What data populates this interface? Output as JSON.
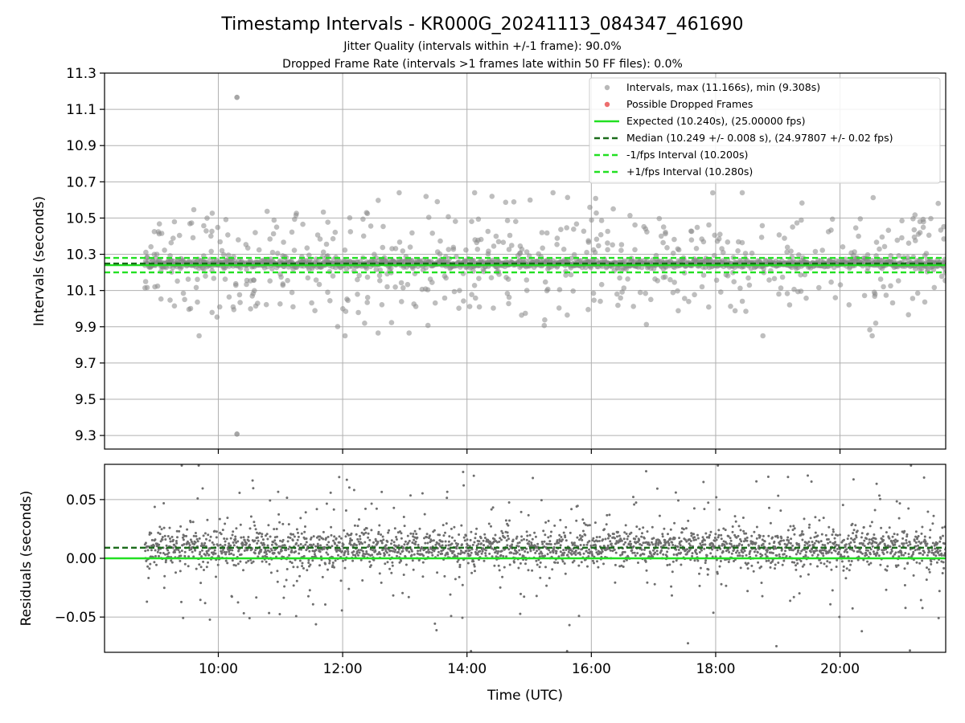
{
  "title": "Timestamp Intervals - KR000G_20241113_084347_461690",
  "subtitle_lines": [
    "Jitter Quality (intervals within +/-1 frame): 90.0%",
    "Dropped Frame Rate (intervals >1 frames late within 50 FF files): 0.0%"
  ],
  "colors": {
    "points": "#888888",
    "dropped": "#e84a4a",
    "expected": "#22e022",
    "median": "#1a6b1a",
    "interval_lines": "#22e022",
    "residual_points": "#6e6e6e",
    "grid": "#b0b0b0"
  },
  "chart_data": [
    {
      "type": "scatter",
      "name": "intervals",
      "ylabel": "Intervals (seconds)",
      "xlabel": "",
      "x_range": [
        8.17,
        21.7
      ],
      "ylim": [
        9.225,
        11.3
      ],
      "yticks": [
        "9.3",
        "9.5",
        "9.7",
        "9.9",
        "10.1",
        "10.3",
        "10.5",
        "10.7",
        "10.9",
        "11.1",
        "11.3"
      ],
      "ytick_values": [
        9.3,
        9.5,
        9.7,
        9.9,
        10.1,
        10.3,
        10.5,
        10.7,
        10.9,
        11.1,
        11.3
      ],
      "xtick_values": [
        10,
        12,
        14,
        16,
        18,
        20
      ],
      "grid": true,
      "legend_position": "top-right",
      "legend": [
        "Intervals, max (11.166s), min (9.308s)",
        "Possible Dropped Frames",
        "Expected (10.240s), (25.00000 fps)",
        "Median (10.249 +/- 0.008 s), (24.97807 +/- 0.02 fps)",
        "-1/fps Interval (10.200s)",
        "+1/fps Interval (10.280s)"
      ],
      "reference_lines": {
        "expected": 10.24,
        "median": 10.249,
        "minus_interval": 10.2,
        "plus_interval": 10.28
      },
      "data_start": 8.82,
      "data_end": 21.7,
      "notable_points": [
        {
          "x": 10.3,
          "y": 11.166
        },
        {
          "x": 10.3,
          "y": 9.308
        }
      ]
    },
    {
      "type": "scatter",
      "name": "residuals",
      "ylabel": "Residuals (seconds)",
      "xlabel": "Time (UTC)",
      "x_range": [
        8.17,
        21.7
      ],
      "ylim": [
        -0.08,
        0.08
      ],
      "yticks": [
        "−0.05",
        "0.00",
        "0.05"
      ],
      "ytick_values": [
        -0.05,
        0.0,
        0.05
      ],
      "xticks": [
        "10:00",
        "12:00",
        "14:00",
        "16:00",
        "18:00",
        "20:00"
      ],
      "xtick_values": [
        10,
        12,
        14,
        16,
        18,
        20
      ],
      "grid": true,
      "reference_lines": {
        "expected": 0.0,
        "median": 0.009
      },
      "data_start": 8.82,
      "data_end": 21.7
    }
  ]
}
